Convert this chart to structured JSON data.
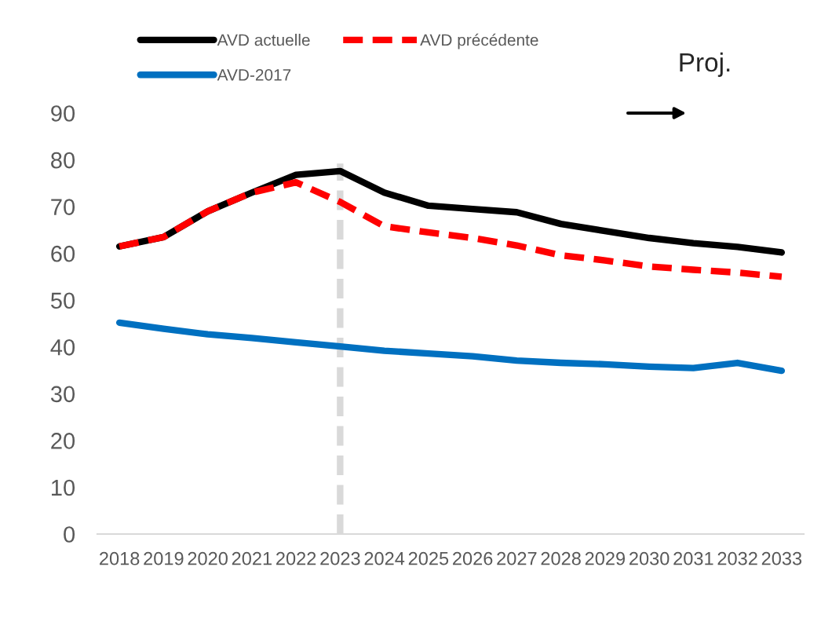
{
  "chart_data": {
    "type": "line",
    "categories": [
      "2018",
      "2019",
      "2020",
      "2021",
      "2022",
      "2023",
      "2024",
      "2025",
      "2026",
      "2027",
      "2028",
      "2029",
      "2030",
      "2031",
      "2032",
      "2033"
    ],
    "series": [
      {
        "name": "AVD actuelle",
        "color": "#000000",
        "line_style": "solid",
        "values": [
          61.5,
          63.5,
          69,
          73,
          76.8,
          77.6,
          73,
          70.2,
          69.5,
          68.8,
          66.3,
          64.8,
          63.3,
          62.2,
          61.4,
          60.2
        ]
      },
      {
        "name": "AVD précédente",
        "color": "#ff0000",
        "line_style": "dashed",
        "values": [
          61.5,
          63.5,
          69,
          73,
          75.2,
          71,
          65.8,
          64.5,
          63.3,
          61.7,
          59.6,
          58.5,
          57.2,
          56.5,
          55.9,
          55.0
        ]
      },
      {
        "name": "AVD-2017",
        "color": "#0070c0",
        "line_style": "solid",
        "values": [
          45.2,
          43.9,
          42.7,
          41.9,
          41.0,
          40.1,
          39.2,
          38.6,
          38.0,
          37.1,
          36.6,
          36.3,
          35.8,
          35.5,
          36.6,
          34.9
        ]
      }
    ],
    "ylim": [
      0,
      90
    ],
    "yticks": [
      0,
      10,
      20,
      30,
      40,
      50,
      60,
      70,
      80,
      90
    ],
    "grid": false,
    "legend": "top",
    "marker": "none",
    "ref_lines": [
      {
        "axis": "x",
        "value": "2023",
        "color": "#d9d9d9",
        "line_style": "dashed"
      }
    ],
    "annotations": [
      "Proj."
    ]
  }
}
